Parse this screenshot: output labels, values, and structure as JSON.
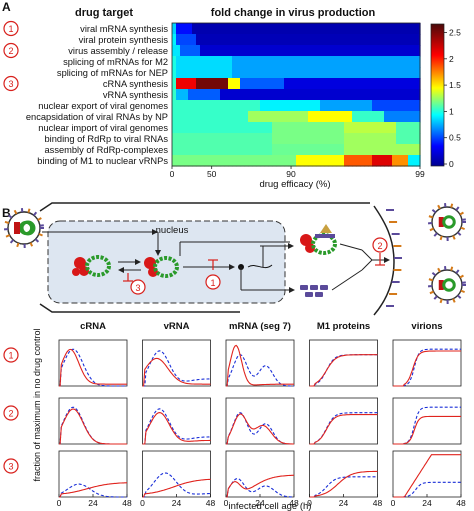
{
  "panel_a": {
    "letter": "A",
    "drug_target_header": "drug target",
    "heatmap_title": "fold change in virus production",
    "targets": [
      "viral mRNA synthesis",
      "viral protein synthesis",
      "virus assembly / release",
      "splicing of mRNAs for M2",
      "splicing of mRNAs for NEP",
      "cRNA synthesis",
      "vRNA synthesis",
      "nuclear export of viral genomes",
      "encapsidation of viral RNAs by NP",
      "nuclear import of viral genomes",
      "binding of RdRp to viral RNAs",
      "assembly of RdRp-complexes",
      "binding of M1 to nuclear vRNPs"
    ],
    "circled_numbers": [
      {
        "num": "1",
        "row": 0
      },
      {
        "num": "2",
        "row": 2
      },
      {
        "num": "3",
        "row": 5
      }
    ],
    "x_ticks": [
      "0",
      "50",
      "90",
      "99"
    ],
    "x_label": "drug efficacy (%)",
    "colorbar_ticks": [
      "0",
      "0.5",
      "1",
      "1.5",
      "2",
      "2.5"
    ]
  },
  "panel_b": {
    "letter": "B",
    "nucleus_label": "nucleus",
    "inhibitor_markers": [
      "1",
      "2",
      "3"
    ],
    "column_titles": [
      "cRNA",
      "vRNA",
      "mRNA (seg 7)",
      "M1 proteins",
      "virions"
    ],
    "row_labels": [
      "1",
      "2",
      "3"
    ],
    "x_ticks": [
      "0",
      "24",
      "48"
    ],
    "x_label": "infected cell age (h)",
    "y_label": "fraction of maximum in no drug control"
  },
  "colors": {
    "red": "#e0241e",
    "blue": "#1a2fd8",
    "nucleus_fill": "#dde6f1",
    "circle": "#d8201c"
  }
}
